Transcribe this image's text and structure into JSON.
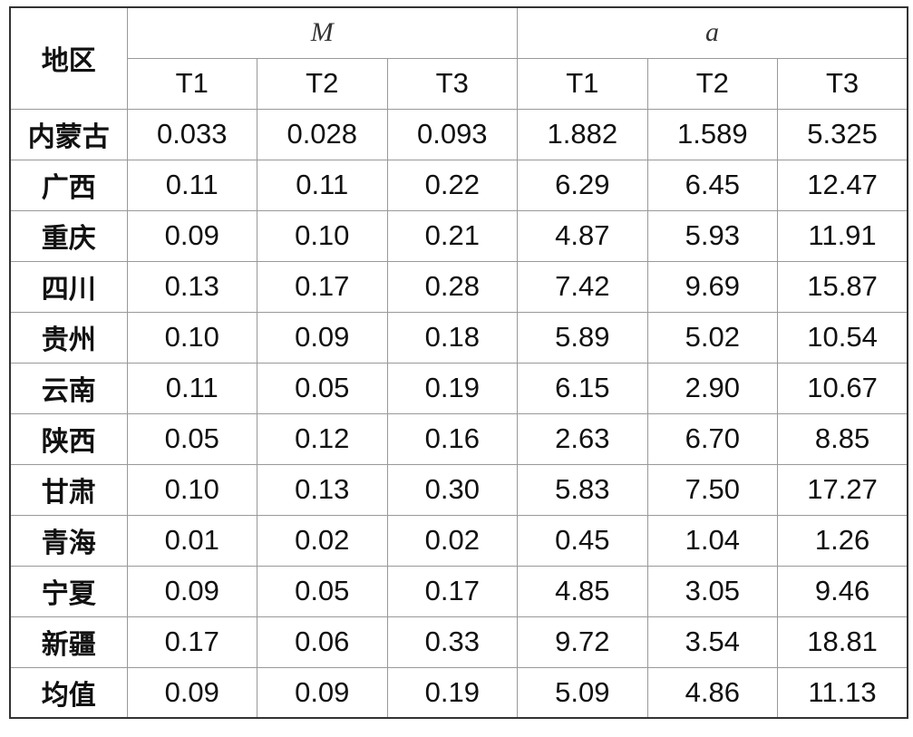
{
  "header": {
    "region": "地区",
    "groups": [
      {
        "label": "M",
        "columns": [
          "T1",
          "T2",
          "T3"
        ]
      },
      {
        "label": "a",
        "columns": [
          "T1",
          "T2",
          "T3"
        ]
      }
    ]
  },
  "table": {
    "rows": [
      {
        "region": "内蒙古",
        "values": [
          "0.033",
          "0.028",
          "0.093",
          "1.882",
          "1.589",
          "5.325"
        ]
      },
      {
        "region": "广西",
        "values": [
          "0.11",
          "0.11",
          "0.22",
          "6.29",
          "6.45",
          "12.47"
        ]
      },
      {
        "region": "重庆",
        "values": [
          "0.09",
          "0.10",
          "0.21",
          "4.87",
          "5.93",
          "11.91"
        ]
      },
      {
        "region": "四川",
        "values": [
          "0.13",
          "0.17",
          "0.28",
          "7.42",
          "9.69",
          "15.87"
        ]
      },
      {
        "region": "贵州",
        "values": [
          "0.10",
          "0.09",
          "0.18",
          "5.89",
          "5.02",
          "10.54"
        ]
      },
      {
        "region": "云南",
        "values": [
          "0.11",
          "0.05",
          "0.19",
          "6.15",
          "2.90",
          "10.67"
        ]
      },
      {
        "region": "陕西",
        "values": [
          "0.05",
          "0.12",
          "0.16",
          "2.63",
          "6.70",
          "8.85"
        ]
      },
      {
        "region": "甘肃",
        "values": [
          "0.10",
          "0.13",
          "0.30",
          "5.83",
          "7.50",
          "17.27"
        ]
      },
      {
        "region": "青海",
        "values": [
          "0.01",
          "0.02",
          "0.02",
          "0.45",
          "1.04",
          "1.26"
        ]
      },
      {
        "region": "宁夏",
        "values": [
          "0.09",
          "0.05",
          "0.17",
          "4.85",
          "3.05",
          "9.46"
        ]
      },
      {
        "region": "新疆",
        "values": [
          "0.17",
          "0.06",
          "0.33",
          "9.72",
          "3.54",
          "18.81"
        ]
      },
      {
        "region": "均值",
        "values": [
          "0.09",
          "0.09",
          "0.19",
          "5.09",
          "4.86",
          "11.13"
        ]
      }
    ]
  }
}
